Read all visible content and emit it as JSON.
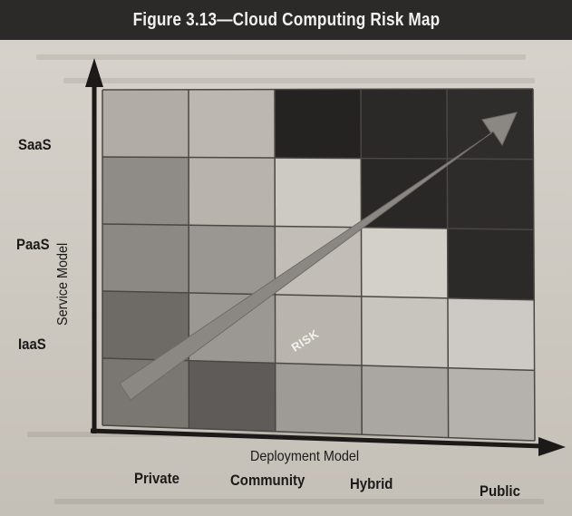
{
  "figure": {
    "title": "Figure 3.13—Cloud Computing Risk Map"
  },
  "axes": {
    "y_title": "Service Model",
    "x_title": "Deployment Model",
    "y_labels": [
      "SaaS",
      "PaaS",
      "IaaS"
    ],
    "x_labels": [
      "Private",
      "Community",
      "Hybrid",
      "Public"
    ]
  },
  "risk_arrow": {
    "label": "RISK"
  },
  "grid": {
    "rows": 5,
    "cols": 5,
    "cell_colors": [
      [
        "#b1aca6",
        "#bcb7b1",
        "#252322",
        "#2b2928",
        "#2f2d2b"
      ],
      [
        "#8f8b86",
        "#b8b3ad",
        "#cdc9c3",
        "#2a2827",
        "#2e2c2a"
      ],
      [
        "#8c8883",
        "#9a9691",
        "#c2bdb7",
        "#d3cfc9",
        "#2c2a29"
      ],
      [
        "#6e6b67",
        "#9b9792",
        "#b9b4ae",
        "#c8c4be",
        "#cdc9c4"
      ],
      [
        "#7a7672",
        "#5e5b58",
        "#9e9a95",
        "#aaa6a1",
        "#b5b1ac"
      ]
    ],
    "arrow_color": "#8b8782",
    "axis_color": "#1b1a19"
  }
}
